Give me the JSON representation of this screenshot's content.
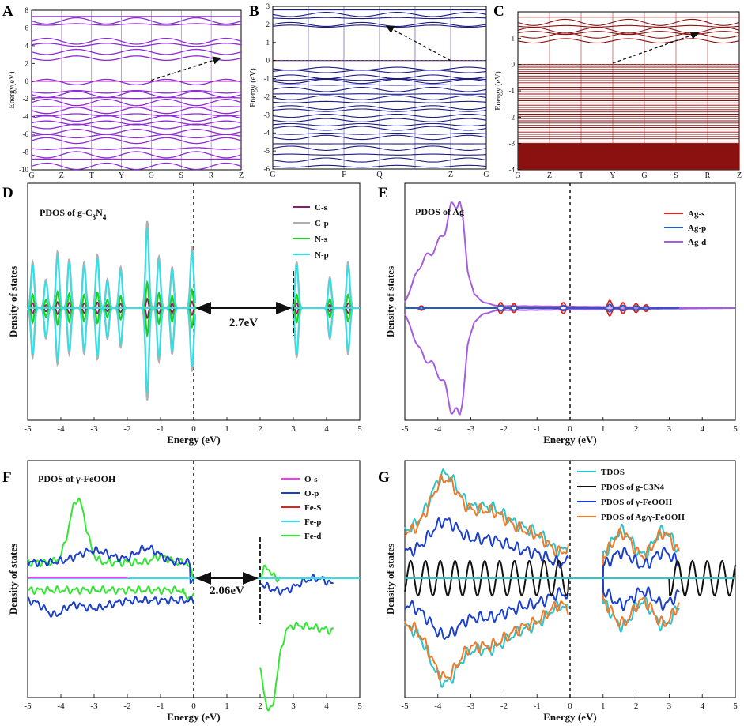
{
  "chart_data": [
    {
      "id": "A",
      "type": "line",
      "subtype": "band-structure",
      "ylabel": "Energy(eV)",
      "ylim": [
        -10,
        8
      ],
      "yticks": [
        8,
        6,
        4,
        2,
        0,
        -2,
        -4,
        -6,
        -8,
        -10
      ],
      "kpoints": [
        "G",
        "Z",
        "T",
        "Y",
        "G",
        "S",
        "R",
        "Z"
      ],
      "color": "#8f2bd6",
      "band_energies": [
        7.3,
        6.8,
        6.4,
        4.5,
        4.1,
        3.3,
        2.6,
        0.0,
        -0.1,
        -1.2,
        -1.5,
        -1.9,
        -2.4,
        -2.9,
        -3.3,
        -3.8,
        -4.2,
        -4.7,
        -5.1,
        -5.7,
        -6.2,
        -6.7,
        -7.6,
        -8.3,
        -8.8,
        -9.6
      ],
      "arrow": {
        "from": [
          4,
          0.1
        ],
        "to": [
          6.3,
          2.6
        ]
      }
    },
    {
      "id": "B",
      "type": "line",
      "subtype": "band-structure",
      "ylabel": "Energy (eV)",
      "ylim": [
        -6,
        3
      ],
      "yticks": [
        3,
        2,
        1,
        0,
        -1,
        -2,
        -3,
        -4,
        -5,
        -6
      ],
      "kpoints": [
        "G",
        "",
        "F",
        "Q",
        "",
        "Z",
        "G"
      ],
      "color": "#1b1b87",
      "band_energies": [
        2.8,
        2.55,
        2.35,
        2.0,
        1.9,
        0.0,
        -0.45,
        -0.6,
        -0.9,
        -1.05,
        -1.15,
        -1.35,
        -1.6,
        -1.85,
        -2.05,
        -2.3,
        -2.6,
        -2.75,
        -3.05,
        -3.3,
        -3.55,
        -3.75,
        -4.05,
        -4.25,
        -4.6,
        -4.85,
        -5.2,
        -5.5,
        -5.85
      ],
      "arrow": {
        "from": [
          5,
          0.0
        ],
        "to": [
          3.2,
          1.9
        ]
      }
    },
    {
      "id": "C",
      "type": "line",
      "subtype": "band-structure",
      "ylabel": "Energy (eV)",
      "ylim": [
        -4,
        2
      ],
      "yticks": [
        1,
        0,
        -1,
        -2,
        -3,
        -4
      ],
      "kpoints": [
        "G",
        "Z",
        "T",
        "Y",
        "G",
        "S",
        "R",
        "Z"
      ],
      "color": "#8b1010",
      "band_energies": [
        1.8,
        1.6,
        1.45,
        1.3,
        1.2,
        1.1,
        0.9,
        0.0
      ],
      "valence_dense_range": [
        -3.0,
        -0.1
      ],
      "arrow": {
        "from": [
          3,
          0.05
        ],
        "to": [
          5.7,
          1.2
        ]
      }
    },
    {
      "id": "D",
      "type": "line",
      "subtype": "pdos",
      "panel_title": "PDOS of g-C",
      "title_sub1": "3",
      "title_mid": "N",
      "title_sub2": "4",
      "xlabel": "Energy (eV)",
      "ylabel": "Density of states",
      "xlim": [
        -5,
        5
      ],
      "xticks": [
        -5,
        -4,
        -3,
        -2,
        -1,
        0,
        1,
        2,
        3,
        4,
        5
      ],
      "gap_label": "2.7eV",
      "gap": [
        0,
        3
      ],
      "series": [
        {
          "name": "C-s",
          "color": "#8b1a6b"
        },
        {
          "name": "C-p",
          "color": "#b0b0b0"
        },
        {
          "name": "N-s",
          "color": "#22cc22"
        },
        {
          "name": "N-p",
          "color": "#33e0e8"
        }
      ],
      "peaks": [
        {
          "x": -4.85,
          "up": 0.45,
          "down": 0.48
        },
        {
          "x": -4.45,
          "up": 0.28,
          "down": 0.3
        },
        {
          "x": -4.1,
          "up": 0.55,
          "down": 0.55
        },
        {
          "x": -3.75,
          "up": 0.48,
          "down": 0.45
        },
        {
          "x": -3.3,
          "up": 0.45,
          "down": 0.45
        },
        {
          "x": -2.9,
          "up": 0.52,
          "down": 0.5
        },
        {
          "x": -2.6,
          "up": 0.28,
          "down": 0.3
        },
        {
          "x": -2.2,
          "up": 0.4,
          "down": 0.38
        },
        {
          "x": -1.4,
          "up": 0.85,
          "down": 0.9
        },
        {
          "x": -1.05,
          "up": 0.5,
          "down": 0.52
        },
        {
          "x": -0.65,
          "up": 0.4,
          "down": 0.45
        },
        {
          "x": -0.05,
          "up": 0.6,
          "down": 0.62
        },
        {
          "x": 3.1,
          "up": 0.45,
          "down": 0.48
        },
        {
          "x": 4.1,
          "up": 0.3,
          "down": 0.3
        },
        {
          "x": 4.65,
          "up": 0.45,
          "down": 0.45
        }
      ]
    },
    {
      "id": "E",
      "type": "line",
      "subtype": "pdos",
      "panel_title": "PDOS of Ag",
      "xlabel": "Energy (eV)",
      "ylabel": "Density of states",
      "xlim": [
        -5,
        5
      ],
      "xticks": [
        -5,
        -4,
        -3,
        -2,
        -1,
        0,
        1,
        2,
        3,
        4,
        5
      ],
      "series": [
        {
          "name": "Ag-s",
          "color": "#e8201c"
        },
        {
          "name": "Ag-p",
          "color": "#1f5fc4"
        },
        {
          "name": "Ag-d",
          "color": "#a45de0"
        }
      ],
      "ag_d_curve": [
        [
          -5,
          0.05
        ],
        [
          -4.8,
          0.2
        ],
        [
          -4.6,
          0.35
        ],
        [
          -4.4,
          0.45
        ],
        [
          -4.2,
          0.5
        ],
        [
          -4.0,
          0.58
        ],
        [
          -3.8,
          0.7
        ],
        [
          -3.6,
          0.9
        ],
        [
          -3.45,
          0.95
        ],
        [
          -3.35,
          1.0
        ],
        [
          -3.25,
          0.8
        ],
        [
          -3.1,
          0.35
        ],
        [
          -2.9,
          0.12
        ],
        [
          -2.6,
          0.05
        ],
        [
          -2.2,
          0.02
        ],
        [
          5,
          0
        ]
      ]
    },
    {
      "id": "F",
      "type": "line",
      "subtype": "pdos",
      "panel_title": "PDOS of γ-FeOOH",
      "xlabel": "Energy (eV)",
      "ylabel": "Density of states",
      "xlim": [
        -5,
        5
      ],
      "xticks": [
        -5,
        -4,
        -3,
        -2,
        -1,
        0,
        1,
        2,
        3,
        4,
        5
      ],
      "gap_label": "2.06eV",
      "gap": [
        0,
        2
      ],
      "series": [
        {
          "name": "O-s",
          "color": "#ff33ff"
        },
        {
          "name": "O-p",
          "color": "#1a3fcc"
        },
        {
          "name": "Fe-S",
          "color": "#e8201c"
        },
        {
          "name": "Fe-p",
          "color": "#33e0e8"
        },
        {
          "name": "Fe-d",
          "color": "#33e633"
        }
      ]
    },
    {
      "id": "G",
      "type": "line",
      "subtype": "pdos",
      "xlabel": "Energy (eV)",
      "ylabel": "Density of states",
      "xlim": [
        -5,
        5
      ],
      "xticks": [
        -5,
        -4,
        -3,
        -2,
        -1,
        0,
        1,
        2,
        3,
        4,
        5
      ],
      "series": [
        {
          "name": "TDOS",
          "color": "#2ec4c8"
        },
        {
          "name": "PDOS of g-C3N4",
          "color": "#111111"
        },
        {
          "name": "PDOS of γ-FeOOH",
          "color": "#1a3fcc"
        },
        {
          "name": "PDOS of Ag/γ-FeOOH",
          "color": "#f07a2a"
        }
      ]
    }
  ]
}
